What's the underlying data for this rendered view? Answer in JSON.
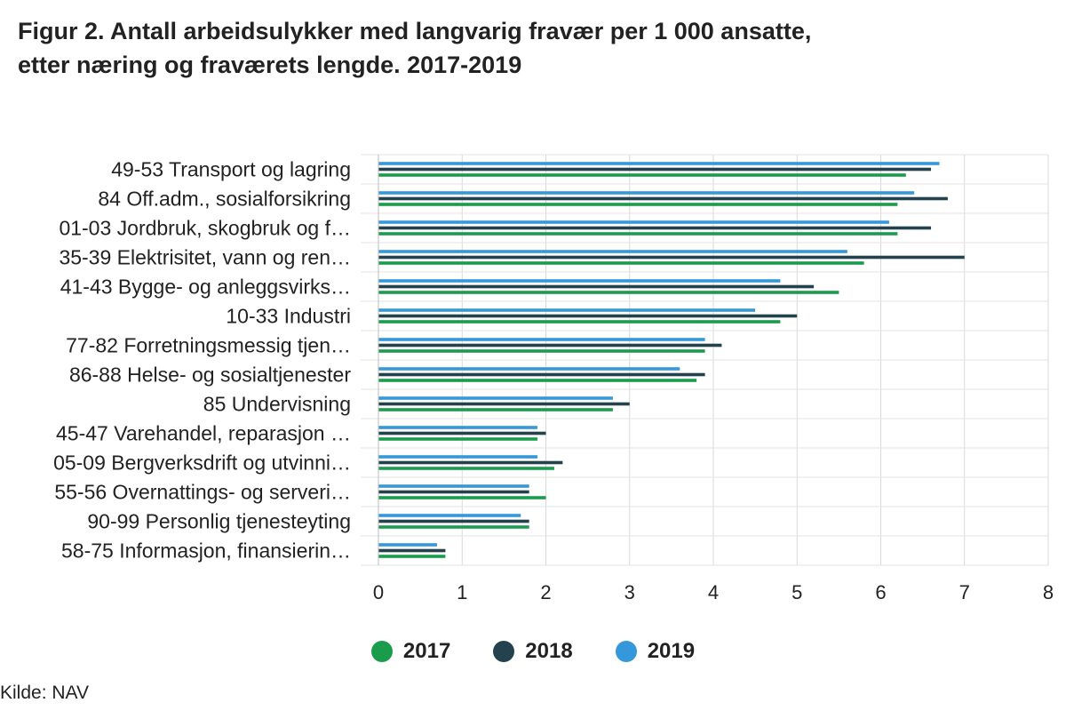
{
  "title_line1": "Figur 2. Antall arbeidsulykker med langvarig fravær per 1 000 ansatte,",
  "title_line2": "etter næring og fraværets lengde. 2017-2019",
  "source": "Kilde: NAV",
  "chart_data": {
    "type": "bar",
    "orientation": "horizontal",
    "categories": [
      "49-53 Transport og lagring",
      "84 Off.adm., sosialforsikring",
      "01-03 Jordbruk, skogbruk og f…",
      "35-39 Elektrisitet, vann og ren…",
      "41-43 Bygge- og anleggsvirks…",
      "10-33 Industri",
      "77-82 Forretningsmessig tjen…",
      "86-88 Helse- og sosialtjenester",
      "85 Undervisning",
      "45-47 Varehandel, reparasjon …",
      "05-09 Bergverksdrift og utvinni…",
      "55-56 Overnattings- og serveri…",
      "90-99 Personlig tjenesteyting",
      "58-75 Informasjon, finansierin…"
    ],
    "series": [
      {
        "name": "2019",
        "color": "#3498db",
        "values": [
          6.7,
          6.4,
          6.1,
          5.6,
          4.8,
          4.5,
          3.9,
          3.6,
          2.8,
          1.9,
          1.9,
          1.8,
          1.7,
          0.7
        ]
      },
      {
        "name": "2018",
        "color": "#24424d",
        "values": [
          6.6,
          6.8,
          6.6,
          7.0,
          5.2,
          5.0,
          4.1,
          3.9,
          3.0,
          2.0,
          2.2,
          1.8,
          1.8,
          0.8
        ]
      },
      {
        "name": "2017",
        "color": "#1a9c4c",
        "values": [
          6.3,
          6.2,
          6.2,
          5.8,
          5.5,
          4.8,
          3.9,
          3.8,
          2.8,
          1.9,
          2.1,
          2.0,
          1.8,
          0.8
        ]
      }
    ],
    "legend_order": [
      "2017",
      "2018",
      "2019"
    ],
    "xlim": [
      0,
      8
    ],
    "xticks": [
      "0",
      "1",
      "2",
      "3",
      "4",
      "5",
      "6",
      "7",
      "8"
    ],
    "grid": true,
    "legend_position": "bottom"
  }
}
